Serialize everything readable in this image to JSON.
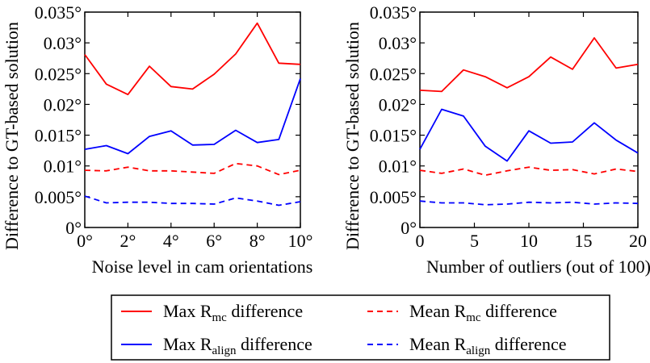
{
  "colors": {
    "red": "#ff0000",
    "blue": "#0000ff",
    "axis": "#000000"
  },
  "legend": {
    "items": [
      {
        "prefix": "Max R",
        "sub": "mc",
        "suffix": " difference",
        "color": "#ff0000",
        "dash": false
      },
      {
        "prefix": "Mean R",
        "sub": "mc",
        "suffix": " difference",
        "color": "#ff0000",
        "dash": true
      },
      {
        "prefix": "Max R",
        "sub": "align",
        "suffix": " difference",
        "color": "#0000ff",
        "dash": false
      },
      {
        "prefix": "Mean R",
        "sub": "align",
        "suffix": " difference",
        "color": "#0000ff",
        "dash": true
      }
    ]
  },
  "chart_data": [
    {
      "type": "line",
      "xlabel": "Noise level in cam orientations",
      "ylabel": "Difference to GT-based solution",
      "xlim": [
        0,
        10
      ],
      "ylim": [
        0,
        0.035
      ],
      "xticks": [
        0,
        2,
        4,
        6,
        8,
        10
      ],
      "xtick_labels": [
        "0°",
        "2°",
        "4°",
        "6°",
        "8°",
        "10°"
      ],
      "yticks": [
        0,
        0.005,
        0.01,
        0.015,
        0.02,
        0.025,
        0.03,
        0.035
      ],
      "ytick_labels": [
        "0°",
        "0.005°",
        "0.01°",
        "0.015°",
        "0.02°",
        "0.025°",
        "0.03°",
        "0.035°"
      ],
      "grid": false,
      "x": [
        0,
        1,
        2,
        3,
        4,
        5,
        6,
        7,
        8,
        9,
        10
      ],
      "series": [
        {
          "values": [
            0.0281,
            0.0233,
            0.0216,
            0.0262,
            0.0229,
            0.0225,
            0.0249,
            0.0282,
            0.0332,
            0.0267,
            0.0265
          ],
          "color": "#ff0000",
          "dash": false
        },
        {
          "values": [
            0.0127,
            0.0133,
            0.012,
            0.0148,
            0.0157,
            0.0134,
            0.0135,
            0.0158,
            0.0138,
            0.0143,
            0.0242
          ],
          "color": "#0000ff",
          "dash": false
        },
        {
          "values": [
            0.0093,
            0.0092,
            0.0098,
            0.0092,
            0.0092,
            0.009,
            0.0088,
            0.0104,
            0.01,
            0.0086,
            0.0093
          ],
          "color": "#ff0000",
          "dash": true
        },
        {
          "values": [
            0.0051,
            0.004,
            0.0041,
            0.0041,
            0.0039,
            0.0039,
            0.0038,
            0.0048,
            0.0043,
            0.0036,
            0.0042
          ],
          "color": "#0000ff",
          "dash": true
        }
      ]
    },
    {
      "type": "line",
      "xlabel": "Number of outliers (out of 100)",
      "ylabel": "Difference to GT-based solution",
      "xlim": [
        0,
        20
      ],
      "ylim": [
        0,
        0.035
      ],
      "xticks": [
        0,
        5,
        10,
        15,
        20
      ],
      "xtick_labels": [
        "0",
        "5",
        "10",
        "15",
        "20"
      ],
      "yticks": [
        0,
        0.005,
        0.01,
        0.015,
        0.02,
        0.025,
        0.03,
        0.035
      ],
      "ytick_labels": [
        "0°",
        "0.005°",
        "0.01°",
        "0.015°",
        "0.02°",
        "0.025°",
        "0.03°",
        "0.035°"
      ],
      "grid": false,
      "x": [
        0,
        2,
        4,
        6,
        8,
        10,
        12,
        14,
        16,
        18,
        20
      ],
      "series": [
        {
          "values": [
            0.0223,
            0.0221,
            0.0256,
            0.0245,
            0.0227,
            0.0245,
            0.0277,
            0.0257,
            0.0308,
            0.0259,
            0.0265
          ],
          "color": "#ff0000",
          "dash": false
        },
        {
          "values": [
            0.0127,
            0.0192,
            0.0181,
            0.0132,
            0.0108,
            0.0157,
            0.0137,
            0.0139,
            0.017,
            0.0142,
            0.0121
          ],
          "color": "#0000ff",
          "dash": false
        },
        {
          "values": [
            0.0093,
            0.0088,
            0.0095,
            0.0085,
            0.0092,
            0.0098,
            0.0093,
            0.0094,
            0.0087,
            0.0095,
            0.0091
          ],
          "color": "#ff0000",
          "dash": true
        },
        {
          "values": [
            0.0043,
            0.004,
            0.004,
            0.0037,
            0.0038,
            0.0041,
            0.004,
            0.0041,
            0.0038,
            0.004,
            0.0039
          ],
          "color": "#0000ff",
          "dash": true
        }
      ]
    }
  ]
}
